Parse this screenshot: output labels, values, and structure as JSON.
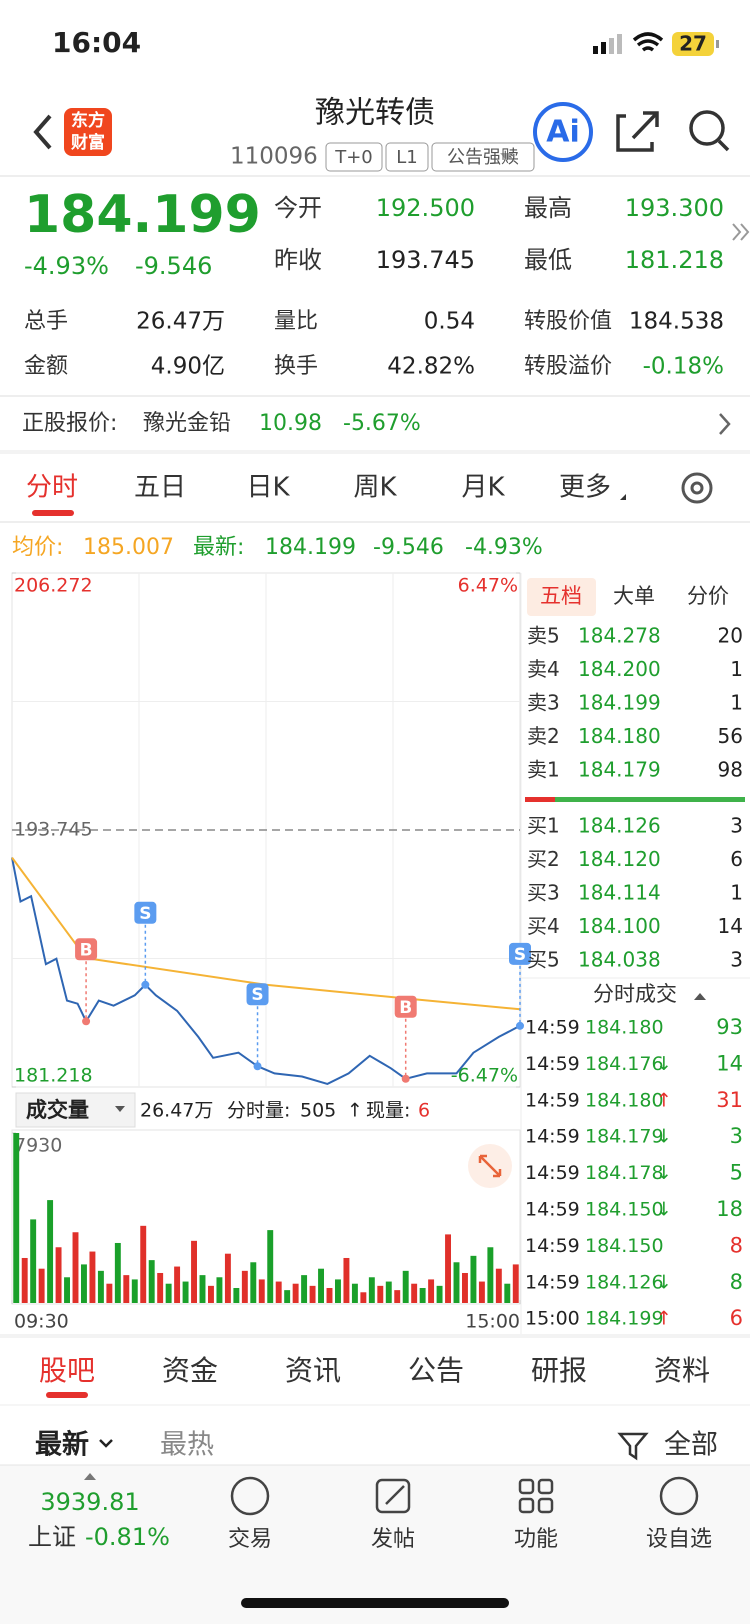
{
  "status_bar": {
    "time": "16:04",
    "battery": "27"
  },
  "header": {
    "logo": [
      "东方",
      "财富"
    ],
    "title": "豫光转债",
    "code": "110096",
    "tags": [
      "T+0",
      "L1",
      "公告强赎"
    ],
    "ai": "Ai"
  },
  "quote": {
    "price": "184.199",
    "change_pct": "-4.93%",
    "change": "-9.546",
    "grid": [
      [
        {
          "label": "今开",
          "value": "192.500",
          "color": "green"
        },
        {
          "label": "最高",
          "value": "193.300",
          "color": "green"
        }
      ],
      [
        {
          "label": "昨收",
          "value": "193.745",
          "color": "dark"
        },
        {
          "label": "最低",
          "value": "181.218",
          "color": "green"
        }
      ]
    ],
    "stats": [
      [
        {
          "label": "总手",
          "value": "26.47万",
          "color": "dark"
        },
        {
          "label": "量比",
          "value": "0.54",
          "color": "dark"
        },
        {
          "label": "转股价值",
          "value": "184.538",
          "color": "dark"
        }
      ],
      [
        {
          "label": "金额",
          "value": "4.90亿",
          "color": "dark"
        },
        {
          "label": "换手",
          "value": "42.82%",
          "color": "dark"
        },
        {
          "label": "转股溢价",
          "value": "-0.18%",
          "color": "green"
        }
      ]
    ]
  },
  "underlying": {
    "label": "正股报价:",
    "name": "豫光金铅",
    "price": "10.98",
    "change_pct": "-5.67%"
  },
  "tabs": [
    "分时",
    "五日",
    "日K",
    "周K",
    "月K",
    "更多"
  ],
  "legend": {
    "avg_label": "均价:",
    "avg": "185.007",
    "latest_label": "最新:",
    "latest": "184.199",
    "change": "-9.546",
    "change_pct": "-4.93%"
  },
  "chart_data": [
    {
      "type": "line",
      "xlim": [
        0,
        240
      ],
      "xticks": [
        {
          "value": 0,
          "label": "09:30"
        },
        {
          "value": 240,
          "label": "15:00"
        }
      ],
      "ylim": [
        181.218,
        206.272
      ],
      "yticks": [
        181.218,
        193.745,
        206.272
      ],
      "y2lim": [
        -6.47,
        6.47
      ],
      "y2ticks": [
        {
          "value": -6.47,
          "label": "-6.47%"
        },
        {
          "value": 6.47,
          "label": "6.47%"
        }
      ],
      "series": [
        {
          "color": "#2f66b3",
          "x": [
            0,
            4,
            9,
            16,
            21,
            26,
            31,
            35,
            41,
            48,
            58,
            63,
            68,
            78,
            88,
            95,
            107,
            116,
            124,
            137,
            149,
            159,
            169,
            179,
            186,
            196,
            210,
            218,
            230,
            240
          ],
          "values": [
            192.4,
            190.26,
            190.52,
            187.21,
            187.47,
            185.43,
            185.28,
            184.42,
            185.43,
            185.18,
            185.69,
            186.2,
            185.69,
            184.93,
            183.66,
            182.64,
            182.89,
            182.23,
            181.88,
            181.73,
            181.37,
            181.88,
            182.74,
            182.13,
            181.62,
            181.88,
            181.88,
            182.89,
            183.66,
            184.199
          ]
        },
        {
          "color": "#f5b335",
          "x": [
            0,
            35,
            120,
            190,
            240
          ],
          "values": [
            192.4,
            187.5,
            186.2,
            185.5,
            185.007
          ]
        }
      ],
      "markers": [
        {
          "label": "B",
          "x": 35,
          "value": 184.42,
          "color": "#f07a72"
        },
        {
          "label": "S",
          "x": 63,
          "value": 186.2,
          "color": "#5b9cf0"
        },
        {
          "label": "S",
          "x": 116,
          "value": 182.23,
          "color": "#5b9cf0"
        },
        {
          "label": "B",
          "x": 186,
          "value": 181.62,
          "color": "#f07a72"
        },
        {
          "label": "S",
          "x": 240,
          "value": 184.199,
          "color": "#5b9cf0"
        }
      ]
    },
    {
      "type": "bar",
      "ylim": [
        0,
        7930
      ],
      "yticks": [
        7930
      ],
      "colors": [
        "#1aa02a",
        "#e0302a"
      ],
      "values": [
        7930,
        2100,
        3900,
        1600,
        4800,
        2600,
        1200,
        3300,
        1800,
        2400,
        1500,
        900,
        2800,
        1300,
        1100,
        3600,
        2000,
        1400,
        900,
        1700,
        1000,
        2900,
        1300,
        800,
        1200,
        2300,
        700,
        1500,
        1900,
        1100,
        3400,
        1000,
        600,
        900,
        1300,
        800,
        1600,
        700,
        1100,
        2100,
        900,
        500,
        1200,
        800,
        1000,
        600,
        1500,
        900,
        700,
        1100,
        800,
        3200,
        1900,
        1400,
        2200,
        1000,
        2600,
        1600,
        900,
        1800
      ]
    }
  ],
  "volume_bar": {
    "selector": "成交量",
    "total": "26.47万",
    "minute_label": "分时量:",
    "minute": "505",
    "arrow": "↑",
    "current_label": "现量:",
    "current": "6"
  },
  "order_book": {
    "tabs": [
      "五档",
      "大单",
      "分价"
    ],
    "asks": [
      {
        "label": "卖5",
        "price": "184.278",
        "volume": "20"
      },
      {
        "label": "卖4",
        "price": "184.200",
        "volume": "1"
      },
      {
        "label": "卖3",
        "price": "184.199",
        "volume": "1"
      },
      {
        "label": "卖2",
        "price": "184.180",
        "volume": "56"
      },
      {
        "label": "卖1",
        "price": "184.179",
        "volume": "98"
      }
    ],
    "bids": [
      {
        "label": "买1",
        "price": "184.126",
        "volume": "3"
      },
      {
        "label": "买2",
        "price": "184.120",
        "volume": "6"
      },
      {
        "label": "买3",
        "price": "184.114",
        "volume": "1"
      },
      {
        "label": "买4",
        "price": "184.100",
        "volume": "14"
      },
      {
        "label": "买5",
        "price": "184.038",
        "volume": "3"
      }
    ]
  },
  "trades": {
    "title": "分时成交",
    "rows": [
      {
        "time": "14:59",
        "price": "184.180",
        "volume": "93",
        "color": "green"
      },
      {
        "time": "14:59",
        "price": "184.176",
        "arrow": "↓",
        "volume": "14",
        "color": "green"
      },
      {
        "time": "14:59",
        "price": "184.180",
        "arrow": "↑",
        "volume": "31",
        "color": "red"
      },
      {
        "time": "14:59",
        "price": "184.179",
        "arrow": "↓",
        "volume": "3",
        "color": "green"
      },
      {
        "time": "14:59",
        "price": "184.178",
        "arrow": "↓",
        "volume": "5",
        "color": "green"
      },
      {
        "time": "14:59",
        "price": "184.150",
        "arrow": "↓",
        "volume": "18",
        "color": "green"
      },
      {
        "time": "14:59",
        "price": "184.150",
        "volume": "8",
        "color": "red"
      },
      {
        "time": "14:59",
        "price": "184.126",
        "arrow": "↓",
        "volume": "8",
        "color": "green"
      },
      {
        "time": "15:00",
        "price": "184.199",
        "arrow": "↑",
        "volume": "6",
        "color": "red"
      }
    ]
  },
  "section_tabs": [
    "股吧",
    "资金",
    "资讯",
    "公告",
    "研报",
    "资料"
  ],
  "sort": {
    "options": [
      "最新",
      "最热"
    ],
    "filter": "全部"
  },
  "bottom_bar": {
    "index_value": "3939.81",
    "index_name": "上证",
    "index_change": "-0.81%",
    "items": [
      "交易",
      "发帖",
      "功能",
      "设自选"
    ]
  }
}
